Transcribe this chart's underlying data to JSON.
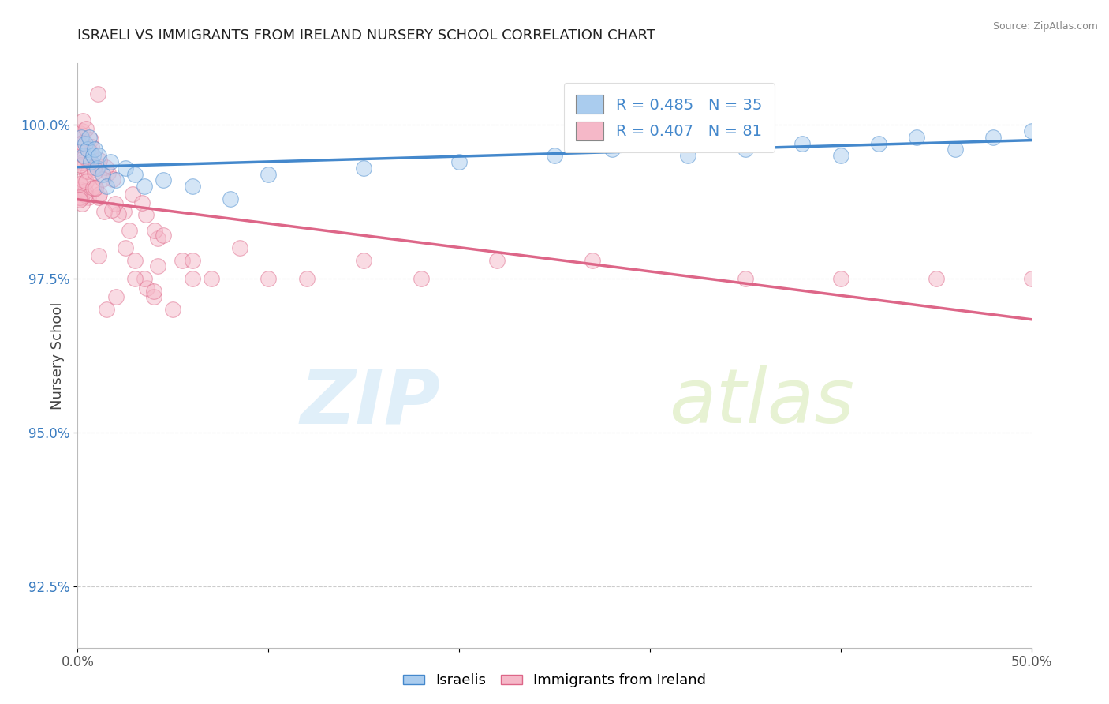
{
  "title": "ISRAELI VS IMMIGRANTS FROM IRELAND NURSERY SCHOOL CORRELATION CHART",
  "source": "Source: ZipAtlas.com",
  "ylabel": "Nursery School",
  "xlim": [
    0.0,
    50.0
  ],
  "ylim": [
    91.5,
    101.0
  ],
  "ytick_positions": [
    92.5,
    95.0,
    97.5,
    100.0
  ],
  "yticklabels": [
    "92.5%",
    "95.0%",
    "97.5%",
    "100.0%"
  ],
  "legend_label1": "R = 0.485   N = 35",
  "legend_label2": "R = 0.407   N = 81",
  "blue_color": "#aaccee",
  "pink_color": "#f5b8c8",
  "trend_blue": "#4488cc",
  "trend_pink": "#dd6688",
  "watermark_zip": "ZIP",
  "watermark_atlas": "atlas"
}
